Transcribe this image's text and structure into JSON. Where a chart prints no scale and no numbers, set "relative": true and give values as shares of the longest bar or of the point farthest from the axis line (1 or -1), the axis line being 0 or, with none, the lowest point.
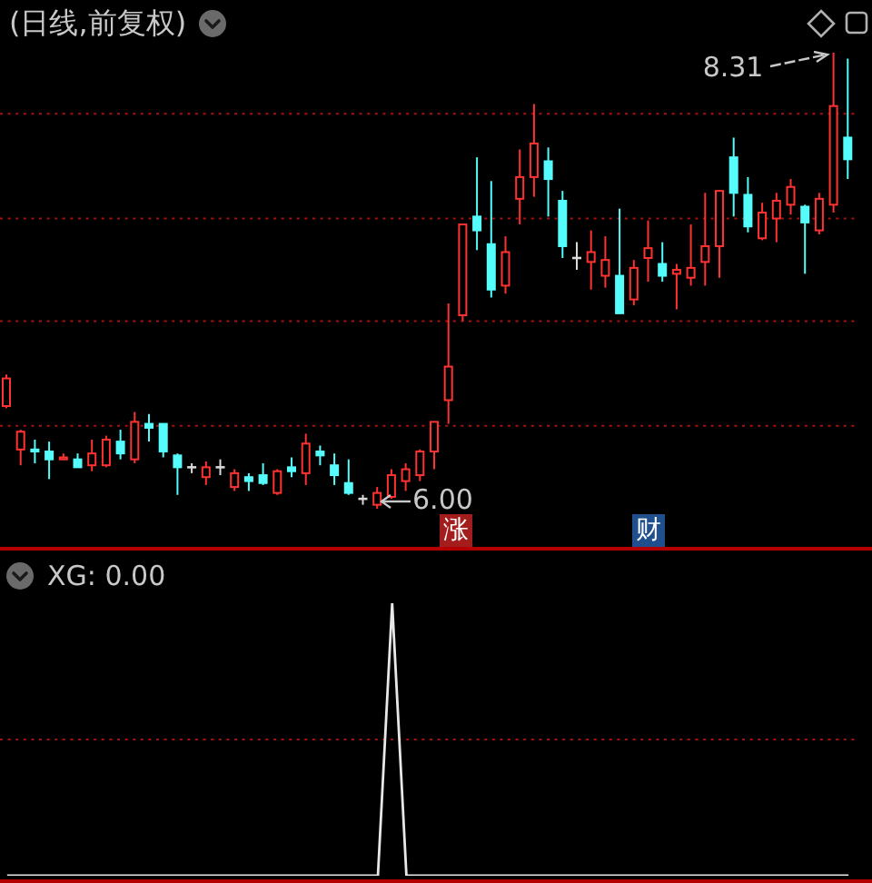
{
  "chart_data": [
    {
      "type": "candlestick",
      "title": "(日线,前复权)",
      "categories": [
        null,
        null,
        null,
        null,
        null,
        null,
        null,
        null,
        null,
        null,
        null,
        null,
        null,
        null,
        null,
        null,
        null,
        null,
        null,
        null,
        null,
        null,
        null,
        null,
        null,
        null,
        null,
        null,
        null,
        null,
        null,
        null,
        null,
        null,
        null,
        null,
        null,
        null,
        null,
        null,
        null,
        null,
        null,
        null,
        null,
        null,
        null,
        null,
        null,
        null,
        null,
        null,
        null,
        null,
        null,
        null,
        null,
        null,
        null,
        null
      ],
      "ohlc": [
        [
          6.52,
          6.68,
          6.51,
          6.66
        ],
        [
          6.3,
          6.4,
          6.22,
          6.39
        ],
        [
          6.3,
          6.35,
          6.23,
          6.29
        ],
        [
          6.29,
          6.34,
          6.15,
          6.25
        ],
        [
          6.25,
          6.28,
          6.25,
          6.26
        ],
        [
          6.25,
          6.28,
          6.21,
          6.21
        ],
        [
          6.22,
          6.35,
          6.19,
          6.28
        ],
        [
          6.22,
          6.37,
          6.21,
          6.35
        ],
        [
          6.34,
          6.4,
          6.25,
          6.28
        ],
        [
          6.25,
          6.49,
          6.23,
          6.44
        ],
        [
          6.43,
          6.48,
          6.34,
          6.41
        ],
        [
          6.43,
          6.43,
          6.26,
          6.29
        ],
        [
          6.27,
          6.28,
          6.07,
          6.21
        ],
        [
          6.21,
          6.23,
          6.18,
          6.21
        ],
        [
          6.16,
          6.24,
          6.12,
          6.21
        ],
        [
          6.21,
          6.25,
          6.17,
          6.21
        ],
        [
          6.11,
          6.2,
          6.09,
          6.18
        ],
        [
          6.16,
          6.18,
          6.09,
          6.14
        ],
        [
          6.17,
          6.23,
          6.12,
          6.13
        ],
        [
          6.08,
          6.2,
          6.07,
          6.19
        ],
        [
          6.21,
          6.26,
          6.16,
          6.19
        ],
        [
          6.18,
          6.38,
          6.12,
          6.33
        ],
        [
          6.29,
          6.32,
          6.22,
          6.27
        ],
        [
          6.22,
          6.28,
          6.12,
          6.17
        ],
        [
          6.13,
          6.25,
          6.07,
          6.08
        ],
        [
          6.05,
          6.07,
          6.02,
          6.05
        ],
        [
          6.02,
          6.11,
          6.0,
          6.08
        ],
        [
          6.06,
          6.2,
          6.05,
          6.17
        ],
        [
          6.14,
          6.23,
          6.09,
          6.2
        ],
        [
          6.17,
          6.3,
          6.14,
          6.29
        ],
        [
          6.29,
          6.44,
          6.2,
          6.44
        ],
        [
          6.55,
          7.04,
          6.43,
          6.72
        ],
        [
          6.98,
          7.44,
          6.95,
          7.44
        ],
        [
          7.48,
          7.78,
          7.31,
          7.41
        ],
        [
          7.34,
          7.66,
          7.07,
          7.11
        ],
        [
          7.13,
          7.38,
          7.09,
          7.3
        ],
        [
          7.57,
          7.82,
          7.44,
          7.68
        ],
        [
          7.68,
          8.05,
          7.58,
          7.85
        ],
        [
          7.76,
          7.83,
          7.48,
          7.67
        ],
        [
          7.56,
          7.61,
          7.27,
          7.33
        ],
        [
          7.27,
          7.35,
          7.21,
          7.27
        ],
        [
          7.25,
          7.41,
          7.11,
          7.3
        ],
        [
          7.18,
          7.38,
          7.12,
          7.26
        ],
        [
          7.18,
          7.52,
          6.99,
          6.99
        ],
        [
          7.06,
          7.26,
          7.03,
          7.22
        ],
        [
          7.27,
          7.46,
          7.15,
          7.32
        ],
        [
          7.24,
          7.35,
          7.15,
          7.18
        ],
        [
          7.19,
          7.24,
          7.01,
          7.21
        ],
        [
          7.17,
          7.44,
          7.13,
          7.22
        ],
        [
          7.25,
          7.6,
          7.13,
          7.33
        ],
        [
          7.33,
          7.61,
          7.17,
          7.61
        ],
        [
          7.78,
          7.88,
          7.48,
          7.6
        ],
        [
          7.59,
          7.68,
          7.4,
          7.43
        ],
        [
          7.37,
          7.55,
          7.36,
          7.5
        ],
        [
          7.47,
          7.6,
          7.35,
          7.56
        ],
        [
          7.54,
          7.67,
          7.49,
          7.63
        ],
        [
          7.53,
          7.54,
          7.19,
          7.45
        ],
        [
          7.41,
          7.6,
          7.39,
          7.57
        ],
        [
          7.54,
          8.31,
          7.5,
          8.04
        ],
        [
          7.88,
          8.28,
          7.67,
          7.77
        ]
      ],
      "colors": [
        "#ff3232",
        "#ff3232",
        "#54fcfc",
        "#54fcfc",
        "#ff3232",
        "#54fcfc",
        "#ff3232",
        "#ff3232",
        "#54fcfc",
        "#ff3232",
        "#54fcfc",
        "#54fcfc",
        "#54fcfc",
        "#d8d8d8",
        "#ff3232",
        "#d8d8d8",
        "#ff3232",
        "#54fcfc",
        "#54fcfc",
        "#ff3232",
        "#54fcfc",
        "#ff3232",
        "#54fcfc",
        "#54fcfc",
        "#54fcfc",
        "#d8d8d8",
        "#ff3232",
        "#ff3232",
        "#ff3232",
        "#ff3232",
        "#ff3232",
        "#ff3232",
        "#ff3232",
        "#54fcfc",
        "#54fcfc",
        "#ff3232",
        "#ff3232",
        "#ff3232",
        "#54fcfc",
        "#54fcfc",
        "#d8d8d8",
        "#ff3232",
        "#ff3232",
        "#54fcfc",
        "#ff3232",
        "#ff3232",
        "#54fcfc",
        "#ff3232",
        "#ff3232",
        "#ff3232",
        "#ff3232",
        "#54fcfc",
        "#54fcfc",
        "#ff3232",
        "#ff3232",
        "#ff3232",
        "#54fcfc",
        "#ff3232",
        "#ff3232",
        "#54fcfc"
      ],
      "yticks": [
        {
          "value": 6.42,
          "label": null
        },
        {
          "value": 6.95,
          "label": null
        },
        {
          "value": 7.47,
          "label": null
        },
        {
          "value": 8.0,
          "label": null
        }
      ],
      "grid": "y",
      "tick_labels": false,
      "annotations": [
        "8.31",
        "6.00",
        "涨",
        "财"
      ]
    },
    {
      "type": "line",
      "title": "XG: 0.00",
      "categories": [
        null,
        null,
        null,
        null,
        null,
        null,
        null,
        null,
        null,
        null,
        null,
        null,
        null,
        null,
        null,
        null,
        null,
        null,
        null,
        null,
        null,
        null,
        null,
        null,
        null,
        null,
        null,
        null,
        null,
        null,
        null,
        null,
        null,
        null,
        null,
        null,
        null,
        null,
        null,
        null,
        null,
        null,
        null,
        null,
        null,
        null,
        null,
        null,
        null,
        null,
        null,
        null,
        null,
        null,
        null,
        null,
        null,
        null,
        null,
        null
      ],
      "values": [
        0,
        0,
        0,
        0,
        0,
        0,
        0,
        0,
        0,
        0,
        0,
        0,
        0,
        0,
        0,
        0,
        0,
        0,
        0,
        0,
        0,
        0,
        0,
        0,
        0,
        0,
        0,
        1,
        0,
        0,
        0,
        0,
        0,
        0,
        0,
        0,
        0,
        0,
        0,
        0,
        0,
        0,
        0,
        0,
        0,
        0,
        0,
        0,
        0,
        0,
        0,
        0,
        0,
        0,
        0,
        0,
        0,
        0,
        0,
        0
      ],
      "color": "#e8e8e8",
      "relative": true,
      "tick_labels": false,
      "marker": "none",
      "ref_lines": [
        {
          "axis": "y",
          "value": 0.5,
          "color": "#a81010",
          "line_style": "dotted"
        }
      ]
    }
  ]
}
